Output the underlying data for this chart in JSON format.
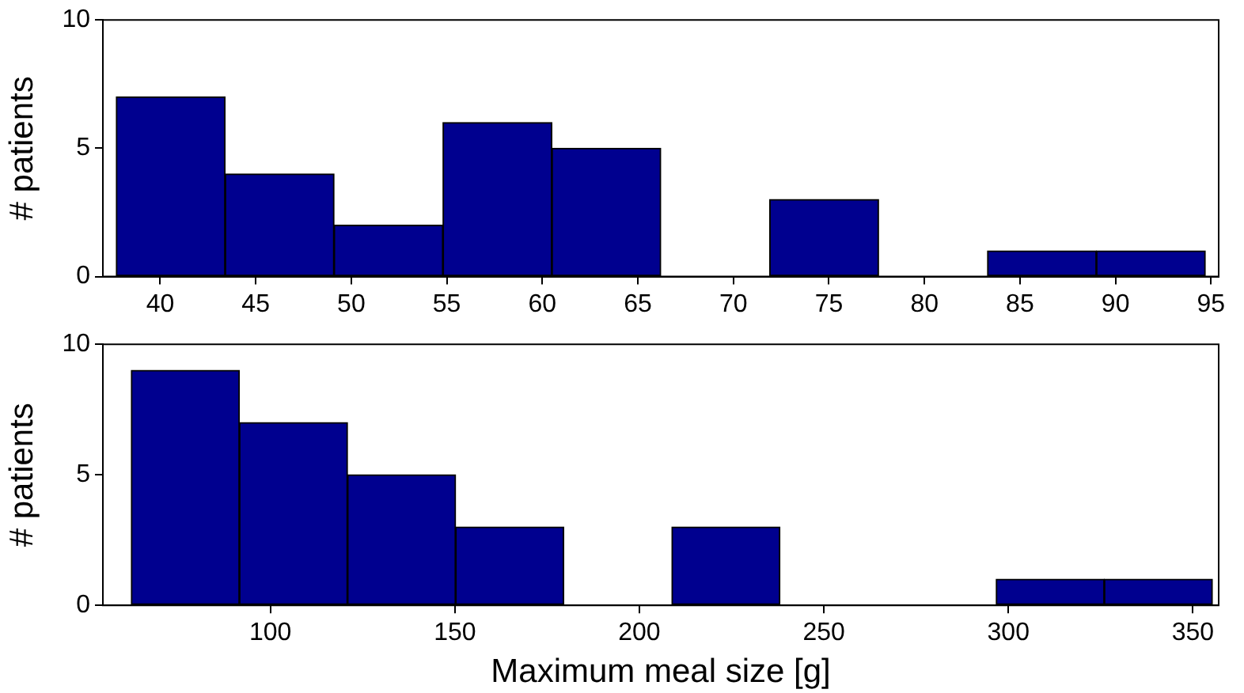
{
  "chart_data": [
    {
      "type": "histogram",
      "ylabel": "# patients",
      "bins": [
        37.7,
        43.4,
        49.1,
        54.8,
        60.5,
        66.2,
        71.9,
        77.6,
        83.3,
        89.0,
        94.7
      ],
      "values": [
        7,
        4,
        2,
        6,
        5,
        0,
        3,
        0,
        1,
        1
      ],
      "color": "#00008f",
      "xlim": [
        37,
        95.4
      ],
      "xticks": [
        40,
        45,
        50,
        55,
        60,
        65,
        70,
        75,
        80,
        85,
        90,
        95
      ],
      "ylim": [
        0,
        10
      ],
      "yticks": [
        0,
        5,
        10
      ],
      "grid": false,
      "legend": false
    },
    {
      "type": "histogram",
      "xlabel": "Maximum meal size [g]",
      "ylabel": "# patients",
      "bins": [
        62.3,
        91.6,
        120.9,
        150.2,
        179.5,
        208.8,
        238.1,
        267.4,
        296.7,
        326.0,
        355.3
      ],
      "values": [
        9,
        7,
        5,
        3,
        0,
        3,
        0,
        0,
        1,
        1
      ],
      "color": "#00008f",
      "xlim": [
        54.6,
        357
      ],
      "xticks": [
        100,
        150,
        200,
        250,
        300,
        350
      ],
      "ylim": [
        0,
        10
      ],
      "yticks": [
        0,
        5,
        10
      ],
      "grid": false,
      "legend": false
    }
  ]
}
